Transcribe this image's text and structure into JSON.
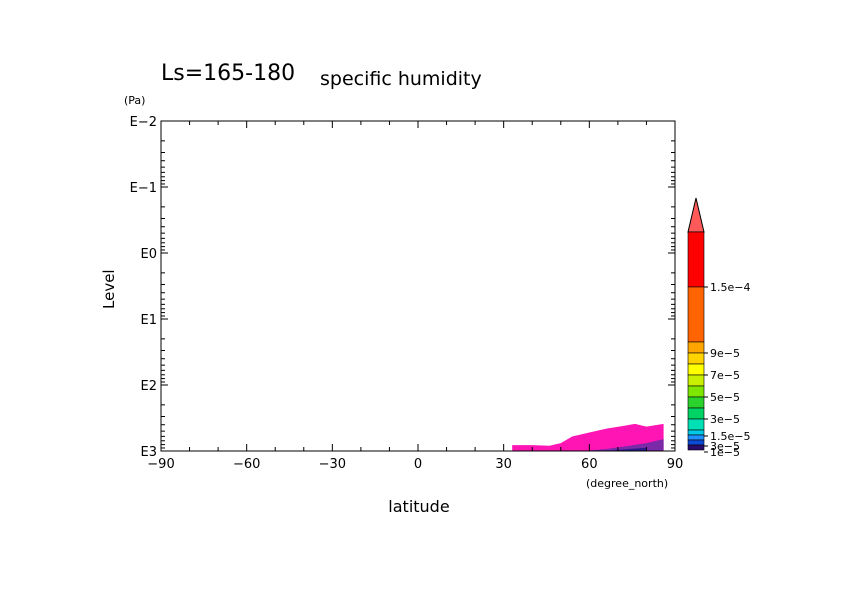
{
  "chart_data": {
    "type": "heatmap",
    "title_left": "Ls=165-180",
    "title_right": "specific humidity",
    "xlabel": "latitude",
    "x_unit": "(degree_north)",
    "ylabel": "Level",
    "y_unit": "(Pa)",
    "x_range": [
      -90,
      90
    ],
    "x_ticks": [
      -90,
      -60,
      -30,
      0,
      30,
      60,
      90
    ],
    "x_tick_labels": [
      "−90",
      "−60",
      "−30",
      "0",
      "30",
      "60",
      "90"
    ],
    "y_range_log10": [
      -2,
      3
    ],
    "y_log_scale": true,
    "y_tick_exponents": [
      -2,
      -1,
      0,
      1,
      2,
      3
    ],
    "y_tick_labels": [
      "E−2",
      "E−1",
      "E0",
      "E1",
      "E2",
      "E3"
    ],
    "grid": false,
    "colorbar": {
      "colors": [
        "#2a0a6e",
        "#2222aa",
        "#0a4ad6",
        "#1e90ff",
        "#00c8e6",
        "#00e0b4",
        "#00d264",
        "#2cd22c",
        "#7ee600",
        "#c8f000",
        "#ffff00",
        "#ffd200",
        "#ffa500",
        "#ff6400",
        "#ff0000",
        "#ff5a5a"
      ],
      "labels": [
        "1e−5",
        "3e−5",
        "1.5e−5",
        "3e−5",
        "5e−5",
        "7e−5",
        "9e−5",
        "1.5e−4"
      ]
    },
    "contour_fill": {
      "colors": [
        "#ff14b4",
        "#7a2aa8",
        "#2a1a8c"
      ],
      "outer_boundary": [
        {
          "lat": 33,
          "log10_p": 3.0
        },
        {
          "lat": 33,
          "log10_p": 2.91
        },
        {
          "lat": 40,
          "log10_p": 2.91
        },
        {
          "lat": 46,
          "log10_p": 2.92
        },
        {
          "lat": 50,
          "log10_p": 2.88
        },
        {
          "lat": 54,
          "log10_p": 2.78
        },
        {
          "lat": 60,
          "log10_p": 2.72
        },
        {
          "lat": 66,
          "log10_p": 2.66
        },
        {
          "lat": 72,
          "log10_p": 2.62
        },
        {
          "lat": 76,
          "log10_p": 2.59
        },
        {
          "lat": 80,
          "log10_p": 2.63
        },
        {
          "lat": 86,
          "log10_p": 2.59
        },
        {
          "lat": 86,
          "log10_p": 3.0
        }
      ],
      "inner_boundary": [
        {
          "lat": 58,
          "log10_p": 3.0
        },
        {
          "lat": 66,
          "log10_p": 2.97
        },
        {
          "lat": 74,
          "log10_p": 2.92
        },
        {
          "lat": 80,
          "log10_p": 2.88
        },
        {
          "lat": 86,
          "log10_p": 2.82
        },
        {
          "lat": 86,
          "log10_p": 3.0
        }
      ],
      "deep_boundary": [
        {
          "lat": 66,
          "log10_p": 3.0
        },
        {
          "lat": 74,
          "log10_p": 2.97
        },
        {
          "lat": 80,
          "log10_p": 2.95
        },
        {
          "lat": 80,
          "log10_p": 3.0
        }
      ]
    }
  }
}
